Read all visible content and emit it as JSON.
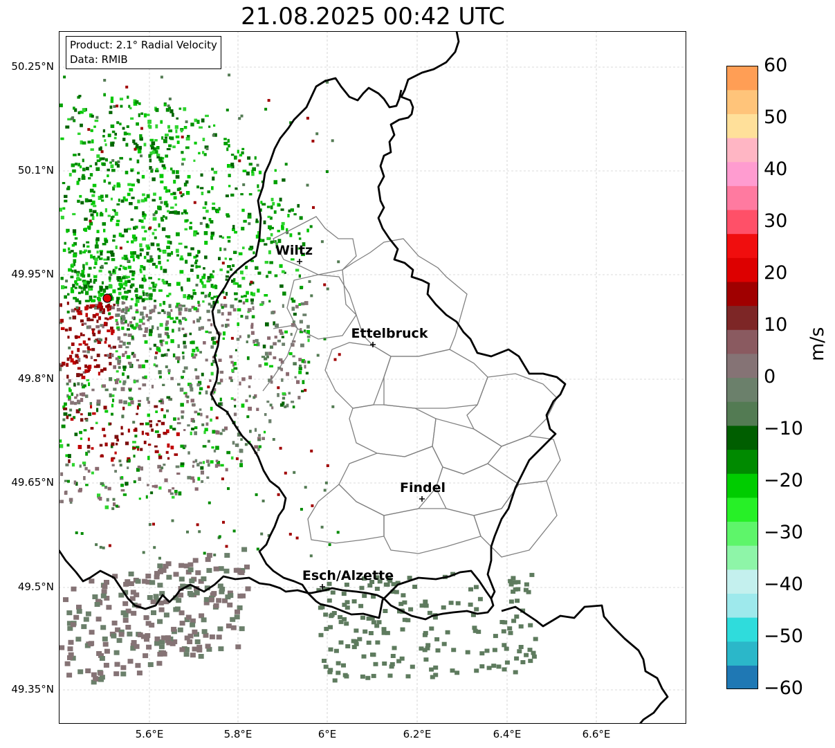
{
  "title": "21.08.2025 00:42 UTC",
  "info": {
    "product": "Product: 2.1° Radial Velocity",
    "data": "Data: RMIB"
  },
  "axes": {
    "lat_labels": [
      "50.25°N",
      "50.1°N",
      "49.95°N",
      "49.8°N",
      "49.65°N",
      "49.5°N",
      "49.35°N"
    ],
    "lon_labels": [
      "5.6°E",
      "5.8°E",
      "6°E",
      "6.2°E",
      "6.4°E",
      "6.6°E"
    ],
    "grid": true
  },
  "cities": [
    {
      "name": "Wiltz"
    },
    {
      "name": "Ettelbruck"
    },
    {
      "name": "Findel"
    },
    {
      "name": "Esch/Alzette"
    }
  ],
  "colorbar": {
    "unit": "m/s",
    "ticks": [
      "60",
      "50",
      "40",
      "30",
      "20",
      "10",
      "0",
      "−10",
      "−20",
      "−30",
      "−40",
      "−50",
      "−60"
    ],
    "range": [
      -60,
      60
    ],
    "colors": [
      "#1f78b4",
      "#2bb7c9",
      "#2fdcdc",
      "#9ee9ec",
      "#c4f0ee",
      "#8ef5a8",
      "#5ef56a",
      "#27f027",
      "#00cc00",
      "#008a00",
      "#005e00",
      "#537b53",
      "#6b806b",
      "#857375",
      "#8a5a60",
      "#7d2626",
      "#a00000",
      "#dd0000",
      "#f00e0e",
      "#ff5068",
      "#ff7aa0",
      "#ff9cd0",
      "#ffb6c4",
      "#ffe09a",
      "#ffc47a",
      "#ff9e55"
    ]
  }
}
